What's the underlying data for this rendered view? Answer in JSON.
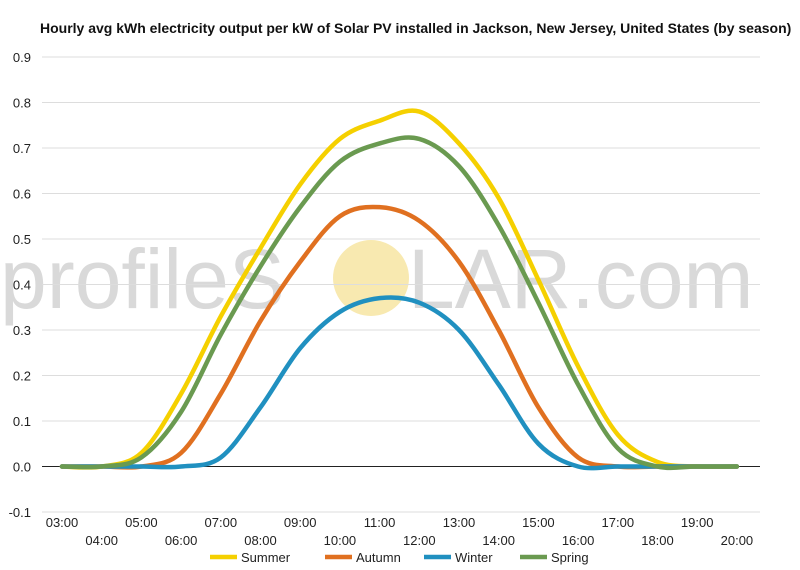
{
  "chart_data": {
    "type": "line",
    "title": "Hourly avg kWh electricity output per kW of Solar PV installed in Jackson, New Jersey, United States (by season)",
    "xlabel": "",
    "ylabel": "",
    "x": [
      "03:00",
      "04:00",
      "05:00",
      "06:00",
      "07:00",
      "08:00",
      "09:00",
      "10:00",
      "11:00",
      "12:00",
      "13:00",
      "14:00",
      "15:00",
      "16:00",
      "17:00",
      "18:00",
      "19:00",
      "20:00"
    ],
    "ylim": [
      -0.1,
      0.9
    ],
    "yticks": [
      "-0.1",
      "0.0",
      "0.1",
      "0.2",
      "0.3",
      "0.4",
      "0.5",
      "0.6",
      "0.7",
      "0.8",
      "0.9"
    ],
    "grid": true,
    "legend_position": "bottom",
    "series": [
      {
        "name": "Summer",
        "color": "#f5d000",
        "values": [
          0.0,
          0.0,
          0.03,
          0.16,
          0.33,
          0.48,
          0.62,
          0.72,
          0.76,
          0.78,
          0.71,
          0.59,
          0.41,
          0.22,
          0.07,
          0.01,
          0.0,
          0.0
        ]
      },
      {
        "name": "Autumn",
        "color": "#e07020",
        "values": [
          0.0,
          0.0,
          0.0,
          0.03,
          0.16,
          0.32,
          0.45,
          0.55,
          0.57,
          0.54,
          0.45,
          0.3,
          0.13,
          0.02,
          0.0,
          0.0,
          0.0,
          0.0
        ]
      },
      {
        "name": "Winter",
        "color": "#2090c0",
        "values": [
          0.0,
          0.0,
          0.0,
          0.0,
          0.02,
          0.13,
          0.26,
          0.34,
          0.37,
          0.36,
          0.3,
          0.18,
          0.05,
          0.0,
          0.0,
          0.0,
          0.0,
          0.0
        ]
      },
      {
        "name": "Spring",
        "color": "#6a9a50",
        "values": [
          0.0,
          0.0,
          0.02,
          0.12,
          0.29,
          0.44,
          0.57,
          0.67,
          0.71,
          0.72,
          0.66,
          0.53,
          0.36,
          0.18,
          0.04,
          0.0,
          0.0,
          0.0
        ]
      }
    ]
  },
  "watermark": {
    "text_left": "profileS",
    "text_right": "LAR.com",
    "sun_color": "#f8e9b0"
  }
}
